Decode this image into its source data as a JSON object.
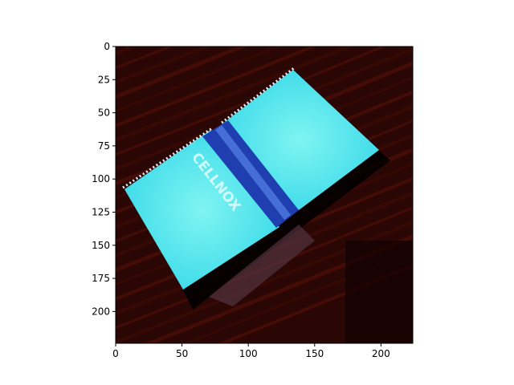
{
  "chart_data": {
    "type": "image",
    "title": "",
    "xlabel": "",
    "ylabel": "",
    "xlim": [
      0,
      224
    ],
    "ylim": [
      224,
      0
    ],
    "x_ticks": [
      0,
      50,
      100,
      150,
      200
    ],
    "y_ticks": [
      0,
      25,
      50,
      75,
      100,
      125,
      150,
      175,
      200
    ],
    "grid": false,
    "image_content": {
      "subject": "notebook on dark wood surface",
      "cover_text": "CELLNOX",
      "colors": {
        "background": "#2a0604",
        "wood_grain": "#4a0e08",
        "cover": "#3fe6ea",
        "cover_light": "#7ff4f2",
        "spine": "#1f3fb0",
        "shadow": "#000000",
        "spiral": "#e8f2ff"
      }
    }
  }
}
